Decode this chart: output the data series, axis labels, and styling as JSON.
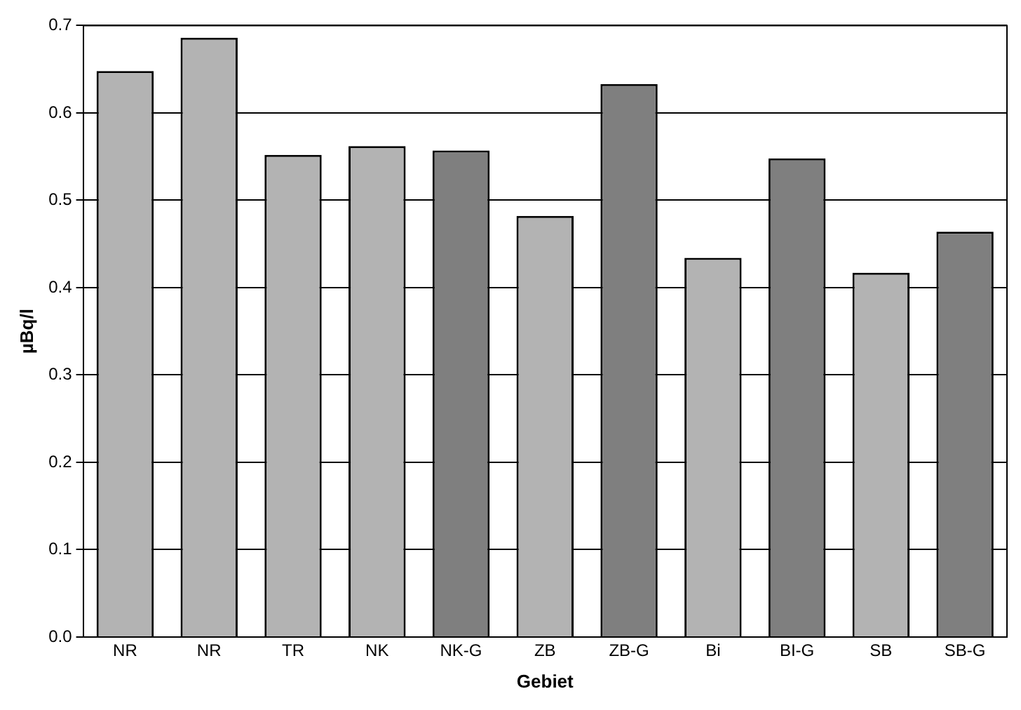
{
  "chart_data": {
    "type": "bar",
    "xlabel": "Gebiet",
    "ylabel": "µBq/l",
    "categories": [
      "NR",
      "NR",
      "TR",
      "NK",
      "NK-G",
      "ZB",
      "ZB-G",
      "Bi",
      "BI-G",
      "SB",
      "SB-G"
    ],
    "values": [
      0.648,
      0.686,
      0.552,
      0.562,
      0.557,
      0.482,
      0.633,
      0.434,
      0.548,
      0.417,
      0.464
    ],
    "colors": [
      "#b3b3b3",
      "#b3b3b3",
      "#b3b3b3",
      "#b3b3b3",
      "#7f7f7f",
      "#b3b3b3",
      "#7f7f7f",
      "#b3b3b3",
      "#7f7f7f",
      "#b3b3b3",
      "#7f7f7f"
    ],
    "ylim": [
      0,
      0.7
    ],
    "yticks": [
      {
        "value": 0,
        "label": "0.0"
      },
      0.1,
      0.2,
      0.3,
      0.4,
      0.5,
      0.6,
      0.7
    ],
    "grid": "y",
    "legend": false
  }
}
